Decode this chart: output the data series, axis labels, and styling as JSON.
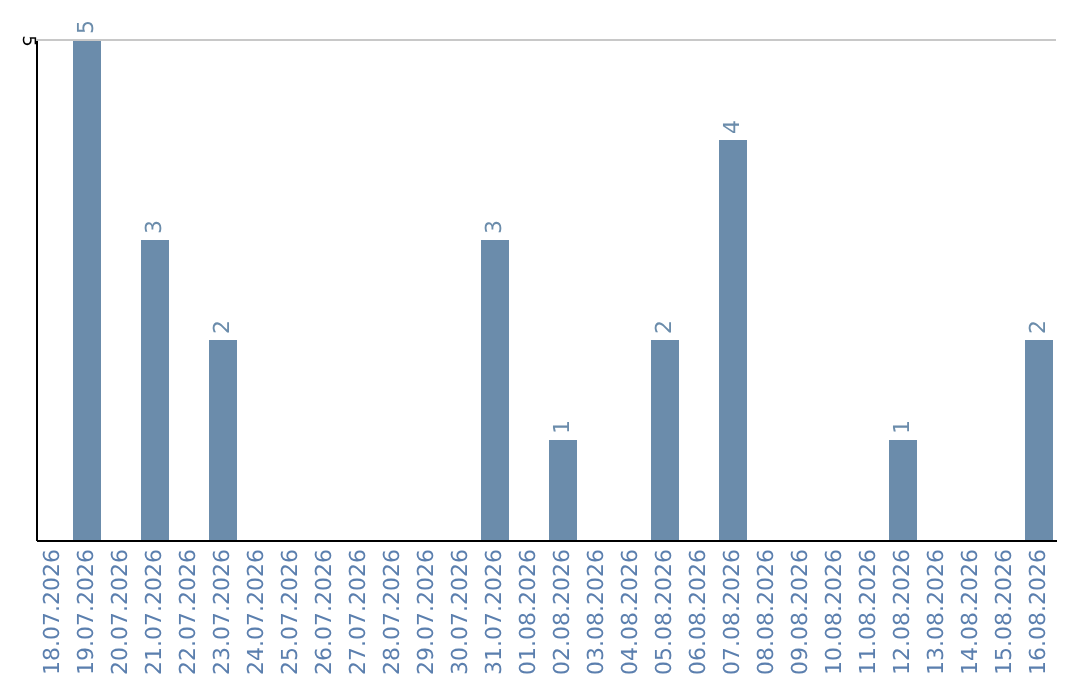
{
  "chart_data": {
    "type": "bar",
    "categories": [
      "18.07.2026",
      "19.07.2026",
      "20.07.2026",
      "21.07.2026",
      "22.07.2026",
      "23.07.2026",
      "24.07.2026",
      "25.07.2026",
      "26.07.2026",
      "27.07.2026",
      "28.07.2026",
      "29.07.2026",
      "30.07.2026",
      "31.07.2026",
      "01.08.2026",
      "02.08.2026",
      "03.08.2026",
      "04.08.2026",
      "05.08.2026",
      "06.08.2026",
      "07.08.2026",
      "08.08.2026",
      "09.08.2026",
      "10.08.2026",
      "11.08.2026",
      "12.08.2026",
      "13.08.2026",
      "14.08.2026",
      "15.08.2026",
      "16.08.2026"
    ],
    "values": [
      0,
      5,
      0,
      3,
      0,
      2,
      0,
      0,
      0,
      0,
      0,
      0,
      0,
      3,
      0,
      1,
      0,
      0,
      2,
      0,
      4,
      0,
      0,
      0,
      0,
      1,
      0,
      0,
      0,
      2
    ],
    "value_labels": [
      null,
      "5",
      null,
      "3",
      null,
      "2",
      null,
      null,
      null,
      null,
      null,
      null,
      null,
      "3",
      null,
      "1",
      null,
      null,
      "2",
      null,
      "4",
      null,
      null,
      null,
      null,
      "1",
      null,
      null,
      null,
      "2"
    ],
    "color": "#6b8cab",
    "ylim": [
      0,
      5
    ],
    "yticks": [
      5
    ],
    "ref_lines": [
      {
        "axis": "y",
        "value": 5,
        "color": "#c8c8c8"
      }
    ]
  }
}
